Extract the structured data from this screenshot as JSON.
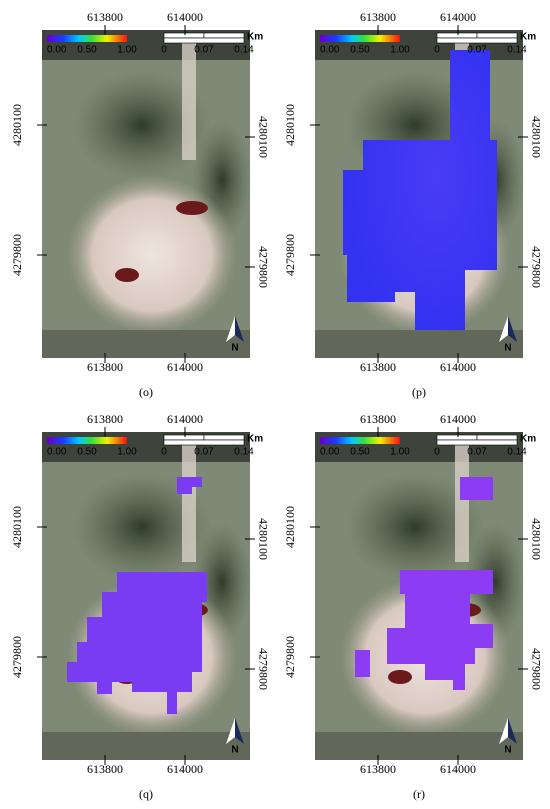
{
  "x_ticks": [
    613800,
    614000
  ],
  "y_ticks": [
    4280100,
    4279800
  ],
  "colorbar_labels": [
    "0.00",
    "0.50",
    "1.00"
  ],
  "scale_labels": [
    "0",
    "0.07",
    "0.14"
  ],
  "scale_unit": "Km",
  "north": "N",
  "panels": [
    {
      "caption": "(o)"
    },
    {
      "caption": "(p)"
    },
    {
      "caption": "(q)"
    },
    {
      "caption": "(r)"
    }
  ]
}
